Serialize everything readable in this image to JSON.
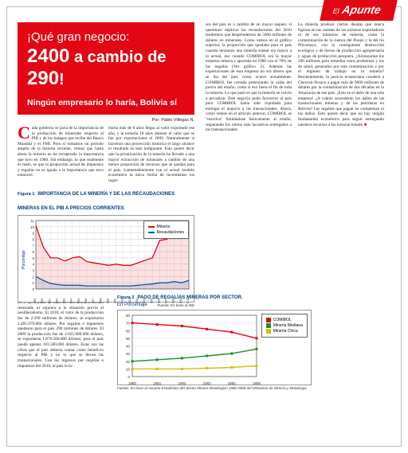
{
  "section": {
    "prefix": "El",
    "name": "Apunte"
  },
  "header": {
    "line1": "¡Qué gran negocio:",
    "line2_a": "2400",
    "line2_mid": " a cambio de ",
    "line2_b": "290",
    "line2_end": "!",
    "sub": "Ningún empresario lo haría, Bolivia sí"
  },
  "byline": "Por: Pablo Villegas N.",
  "body": {
    "c1a": "ada gobierno se jacta de la importancia de la producción de minerales respecto al PIB y de los halagos que recibe del Banco Mundial y el FMI. Pero si tomamos un periodo amplio de la historia reciente, vemos que hasta ahora la minería no ha recuperado la importancia que tuvo en 1980. Sin embargo, lo que realmente es malo, es que la proporción actual de impuestos y regalías no se iguala a la importancia que tuvo entonces.",
    "c2a": "maría más de 8 años llegar al valor exportado ese año, y le tomaría 18 años obtener el valor que se fue por exportaciones el 2009. Naturalmente si hacemos una proyección histórica el largo alcance el resultado es más indignante. Esto quiere decir que la privatización de la minería ha llevado a una mayor extracción de minerales a cambio de una menor proporción de recursos que se quedan para el país. Lamentablemente con el actual modelo económico la única forma de incrementar los ingre-",
    "c3": "sos del país es a cambio de un mayor saqueo; si queremos duplicar las recaudaciones del 2010 tendremos que desprendernos de 5000 millones de dólares en minerales. Como vemos en el gráfico superior, la proporción que quedaba para el país cuando teníamos una minería estatal era mayor a la actual, eso cuando COMIBOL era la mayor empresa minera y aportaba en 1980 con el 70% de las regalías (Ver gráfico 2). Además las exportaciones de esta empresa no era dinero que se iba del país como ocurre actualmente. COMIBOL fue cerrada pretextando la caída del precio del estaño, como si eso fuera el fin de toda la minería. Lo que pasó es que la minería se volvió a privatizar. Este negocio pudo favorecer al país pero COMIBOL había sido liquidada para entregar el negocio a las trasnacionales. Ahora, como vemos en el artículo anterior, COMIBOL se \"reactiva\" limitándose básicamente al estaño, respetando los rubros más lucrativos entregados a las transnacionales.",
    "c4": "La minería produce ciertas deudas que nunca figuran en las cuentas de los exitosos exportadores ni de sus ministros de minería, como la contaminación de la cuenca del Poopó y la del río Pilcomayo, con la consiguiente destrucción ecológica y de tierras de producción agropecuaria y aguas de producción pesquera. ¿Alcanzarían los 290 millones para remediar estos problemas y los de salud, generados por esta contaminación y por el régimen de trabajo en la minería? Recientemente, la justicia ecuatoriana condenó a Chevron-Texaco a pagar más de 9000 millones de dólares por la contaminación de dos décadas en la Amazonía de ese país. ¡Esto es el daño de una sola empresa! ¿A cuánto ascenderán los daños de las trasnacionales mineras y de las petroleras en Bolivia? Las regalías que pagan no compensan ni los daños. Esto quiere decir que no hay ningún fundamento económico para seguir entregando nuestros recursos a las transnacionales",
    "c1b": "La gran diferencia del presente con aquel año es que la minería estatal era la mayor. Esto quiere decir que a pesar de todos los discursos, no hemos retornado ni siquiera a la situación previa al neoliberalismo. El 2010, el valor de la producción fue de 2.599 millones de dólares; se exportaron 2.405.079.804 dólares. Por regalías e impuestos quedaron para el país 290 millones de dólares. El 2009 la producción fue de 2.055.900.000 dólares, se exportaron 1.870.500.000 dólares; para el país quedó apenas 103.580.000 dólares. Estas son las cifras que el país debería contar como beneficio respecto al PIB y no lo que se llevan las trasnacionales. Con los ingresos por regalías e impuestos del 2010, al país le to-",
    "c2b": "",
    "c3b": ""
  },
  "figure1": {
    "label": "Figura 1",
    "title": "IMPORTANCIA DE LA MINERÍA Y DE LAS RECAUDACIONES MINERAS EN EL PIB A PRECIOS CORRIENTES",
    "source": "Fuente: En base al INE",
    "type": "line",
    "ylabel": "Porcentaje",
    "ylim": [
      0,
      11
    ],
    "yticks": [
      0,
      1,
      2,
      3,
      4,
      5,
      6,
      7,
      8,
      9,
      10,
      11
    ],
    "xticks": [
      "1999",
      "1990",
      "1991",
      "1992",
      "1993",
      "1994",
      "1995",
      "1996",
      "1997",
      "1998",
      "1999",
      "2000",
      "2001",
      "2002",
      "2003",
      "2004",
      "2005",
      "2006",
      "2007",
      "2008",
      "2009",
      "2010"
    ],
    "colors": {
      "mineria": "#e30613",
      "recaudaciones": "#0a5aa6",
      "grid": "#cfcfcf",
      "axis": "#333333",
      "bg": "#ffffff"
    },
    "series": {
      "mineria": [
        10.2,
        6.8,
        5.0,
        5.0,
        4.5,
        5.0,
        5.2,
        4.4,
        4.2,
        4.0,
        3.8,
        4.0,
        3.8,
        3.8,
        4.2,
        4.6,
        5.0,
        7.8,
        8.0,
        10.5,
        9.0,
        10.6
      ],
      "recaudaciones": [
        2.0,
        1.4,
        0.9,
        0.7,
        0.6,
        0.6,
        0.6,
        0.5,
        0.5,
        0.5,
        0.5,
        0.5,
        0.5,
        0.5,
        0.6,
        0.7,
        0.8,
        1.0,
        1.0,
        1.2,
        1.0,
        1.4
      ]
    },
    "legend": [
      "Minería",
      "Recaudaciones"
    ]
  },
  "figure2": {
    "label": "Figura 2",
    "title": "PAGO DE REGALÍAS MINERAS POR SECTOR.",
    "subtitle": "En Porcentaje",
    "source": "Fuente: En base al Anuario Estadístico del Sector Minero Metalúrgico 1980-2008 del Ministerio de Minería y Metalurgia",
    "type": "line",
    "ylim": [
      0,
      80
    ],
    "yticks": [
      0,
      10,
      20,
      30,
      40,
      50,
      60,
      70,
      80
    ],
    "xticks": [
      "1980",
      "1981",
      "1982",
      "1983",
      "1984",
      "1985"
    ],
    "colors": {
      "comibol": "#e30613",
      "mediana": "#1b8f2a",
      "chica": "#d4c100",
      "grid": "#e7e7e7",
      "axis": "#333333",
      "bg": "#ffffff"
    },
    "series": {
      "comibol": [
        70,
        68,
        66,
        62,
        58,
        50
      ],
      "mediana": [
        20,
        22,
        24,
        27,
        30,
        36
      ],
      "chica": [
        10,
        10,
        10,
        11,
        12,
        14
      ]
    },
    "legend": [
      "COMIBOL",
      "Minería Mediana",
      "Minería Chica"
    ]
  },
  "end_mark": "■"
}
